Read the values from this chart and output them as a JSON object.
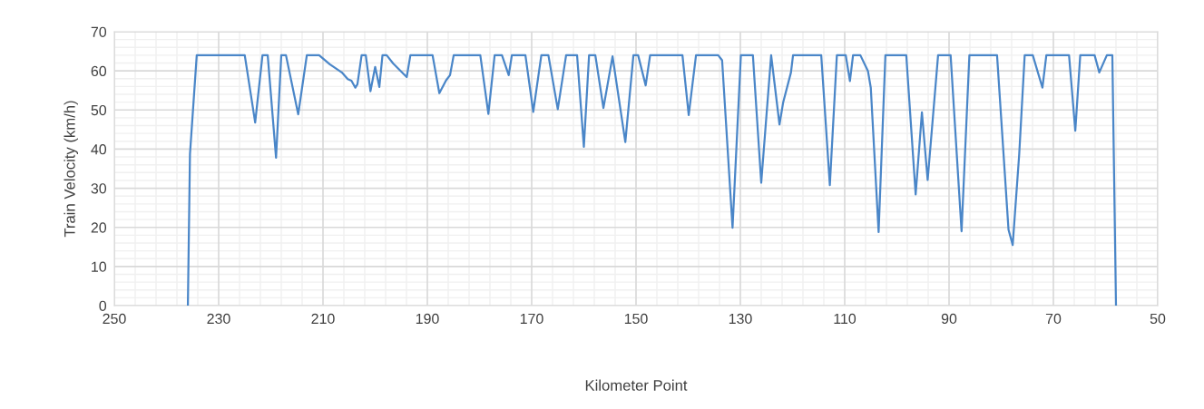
{
  "chart_data": {
    "type": "line",
    "xlabel": "Kilometer Point",
    "ylabel": "Train Velocity (km/h)",
    "xlim": [
      250,
      50
    ],
    "xticks": [
      250,
      230,
      210,
      190,
      170,
      150,
      130,
      110,
      90,
      70,
      50
    ],
    "ylim": [
      0,
      70
    ],
    "yticks": [
      0,
      10,
      20,
      30,
      40,
      50,
      60,
      70
    ],
    "grid": true,
    "legend": false,
    "marker": "none",
    "line_style": "solid",
    "series": [
      {
        "color": "#4a86c8",
        "x": [
          235.9,
          235.5,
          234.2,
          225.0,
          223.0,
          221.6,
          220.6,
          219.0,
          218.0,
          217.1,
          214.75,
          213.1,
          210.75,
          208.7,
          206.4,
          205.25,
          204.55,
          203.8,
          203.4,
          202.6,
          201.8,
          200.9,
          200.0,
          199.2,
          198.6,
          197.8,
          196.55,
          193.95,
          193.25,
          189.0,
          187.7,
          186.4,
          185.65,
          184.95,
          179.85,
          178.3,
          177.1,
          175.7,
          174.4,
          173.8,
          171.2,
          169.7,
          168.15,
          166.8,
          165.0,
          163.4,
          161.3,
          160.0,
          159.0,
          157.8,
          156.25,
          154.5,
          152.05,
          150.5,
          149.6,
          148.15,
          147.3,
          141.1,
          139.9,
          138.5,
          134.25,
          133.5,
          131.5,
          129.9,
          127.6,
          126.0,
          124.1,
          122.5,
          121.8,
          120.3,
          119.9,
          114.5,
          112.85,
          111.5,
          109.8,
          109.0,
          108.4,
          107.0,
          105.55,
          105.0,
          103.5,
          102.2,
          98.2,
          96.4,
          95.2,
          94.1,
          92.1,
          89.7,
          87.6,
          86.1,
          80.8,
          78.6,
          77.8,
          76.55,
          75.5,
          73.95,
          72.1,
          71.35,
          67.0,
          65.8,
          64.85,
          62.1,
          61.2,
          59.75,
          58.7,
          58.0
        ],
        "values": [
          0,
          38.7,
          64,
          64,
          46.8,
          64,
          64,
          37.8,
          64,
          64,
          48.9,
          64,
          64,
          61.7,
          59.6,
          57.9,
          57.5,
          55.7,
          56.6,
          64,
          64,
          54.8,
          61,
          55.9,
          64,
          64,
          61.9,
          58.4,
          64,
          64,
          54.3,
          57.6,
          58.9,
          64,
          64,
          49.0,
          64,
          64,
          58.9,
          64,
          64,
          49.5,
          64,
          64,
          50.2,
          64,
          64,
          40.6,
          64,
          64,
          50.5,
          63.7,
          41.8,
          64,
          64,
          56.3,
          64,
          64,
          48.7,
          64,
          64,
          62.7,
          19.9,
          64,
          64,
          31.4,
          64,
          46.3,
          51.9,
          59.6,
          64,
          64,
          30.8,
          64,
          64,
          57.4,
          64,
          64,
          60.0,
          55.7,
          18.8,
          64,
          64,
          28.4,
          49.4,
          32.1,
          64,
          64,
          19.0,
          64,
          64,
          19.4,
          15.5,
          38.7,
          64,
          64,
          55.7,
          64,
          64,
          44.7,
          64,
          64,
          59.6,
          64,
          64,
          0
        ]
      }
    ]
  }
}
